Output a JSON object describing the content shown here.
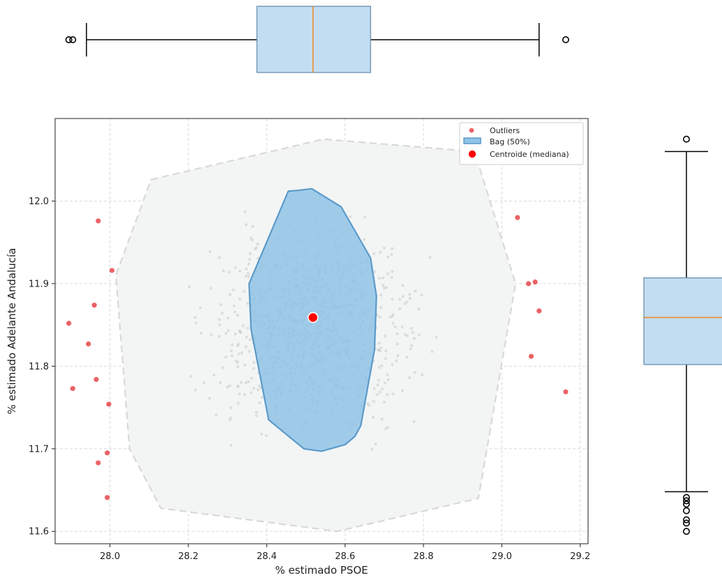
{
  "colors": {
    "outlier": "#e8474a",
    "centroid": "#ff0000",
    "bag_fill": "#8fc3e6",
    "bag_edge": "#5b9ac9",
    "hull_fill": "#f3f5f5",
    "hull_edge": "#d8d8d8",
    "cloud": "#c8c8c8",
    "box_fill": "#c2ddf2",
    "box_edge": "#6a8fae",
    "median": "#f08a2a",
    "whisker": "#000000"
  },
  "chart_data": [
    {
      "type": "scatter",
      "subtype": "bagplot",
      "xlabel": "% estimado PSOE",
      "ylabel": "% estimado Adelante Andalucía",
      "xlim": [
        27.86,
        29.22
      ],
      "ylim": [
        11.585,
        12.1
      ],
      "xticks": [
        28.0,
        28.2,
        28.4,
        28.6,
        28.8,
        29.0,
        29.2
      ],
      "xtick_labels": [
        "28.0",
        "28.2",
        "28.4",
        "28.6",
        "28.8",
        "29.0",
        "29.2"
      ],
      "yticks": [
        11.6,
        11.7,
        11.8,
        11.9,
        12.0
      ],
      "ytick_labels": [
        "11.6",
        "11.7",
        "11.8",
        "11.9",
        "12.0"
      ],
      "grid": true,
      "legend": {
        "position": "top-right",
        "entries": [
          "Outliers",
          "Bag (50%)",
          "Centroide (mediana)"
        ]
      },
      "outliers": {
        "name": "Outliers",
        "points": [
          [
            27.97,
            11.976
          ],
          [
            28.005,
            11.916
          ],
          [
            27.96,
            11.874
          ],
          [
            27.895,
            11.852
          ],
          [
            27.945,
            11.827
          ],
          [
            27.965,
            11.784
          ],
          [
            27.905,
            11.773
          ],
          [
            27.997,
            11.754
          ],
          [
            27.993,
            11.695
          ],
          [
            27.97,
            11.683
          ],
          [
            27.993,
            11.641
          ],
          [
            29.04,
            11.98
          ],
          [
            29.085,
            11.902
          ],
          [
            29.068,
            11.9
          ],
          [
            29.095,
            11.867
          ],
          [
            29.075,
            11.812
          ],
          [
            29.163,
            11.769
          ]
        ]
      },
      "bag": {
        "name": "Bag (50%)",
        "polygon": [
          [
            28.48,
            12.013
          ],
          [
            28.515,
            12.015
          ],
          [
            28.59,
            11.993
          ],
          [
            28.665,
            11.931
          ],
          [
            28.68,
            11.885
          ],
          [
            28.675,
            11.82
          ],
          [
            28.64,
            11.728
          ],
          [
            28.625,
            11.715
          ],
          [
            28.6,
            11.705
          ],
          [
            28.54,
            11.697
          ],
          [
            28.495,
            11.7
          ],
          [
            28.405,
            11.735
          ],
          [
            28.36,
            11.845
          ],
          [
            28.355,
            11.9
          ],
          [
            28.455,
            12.012
          ]
        ]
      },
      "hull": {
        "polygon": [
          [
            28.105,
            12.026
          ],
          [
            28.545,
            12.075
          ],
          [
            28.93,
            12.06
          ],
          [
            28.96,
            12.015
          ],
          [
            29.035,
            11.9
          ],
          [
            28.94,
            11.64
          ],
          [
            28.58,
            11.6
          ],
          [
            28.13,
            11.628
          ],
          [
            28.05,
            11.7
          ],
          [
            28.015,
            11.91
          ]
        ]
      },
      "centroid": {
        "name": "Centroide (mediana)",
        "point": [
          28.518,
          11.859
        ]
      }
    },
    {
      "type": "boxplot",
      "orientation": "horizontal",
      "variable": "% estimado PSOE",
      "whisker_low": 27.94,
      "q1": 28.375,
      "median": 28.518,
      "q3": 28.665,
      "whisker_high": 29.095,
      "fliers": [
        27.895,
        27.905,
        29.163
      ]
    },
    {
      "type": "boxplot",
      "orientation": "vertical",
      "variable": "% estimado Adelante Andalucía",
      "whisker_low": 11.648,
      "q1": 11.802,
      "median": 11.859,
      "q3": 11.907,
      "whisker_high": 12.06,
      "fliers": [
        12.075,
        11.641,
        11.637,
        11.633,
        11.625,
        11.614,
        11.61,
        11.6
      ]
    }
  ]
}
